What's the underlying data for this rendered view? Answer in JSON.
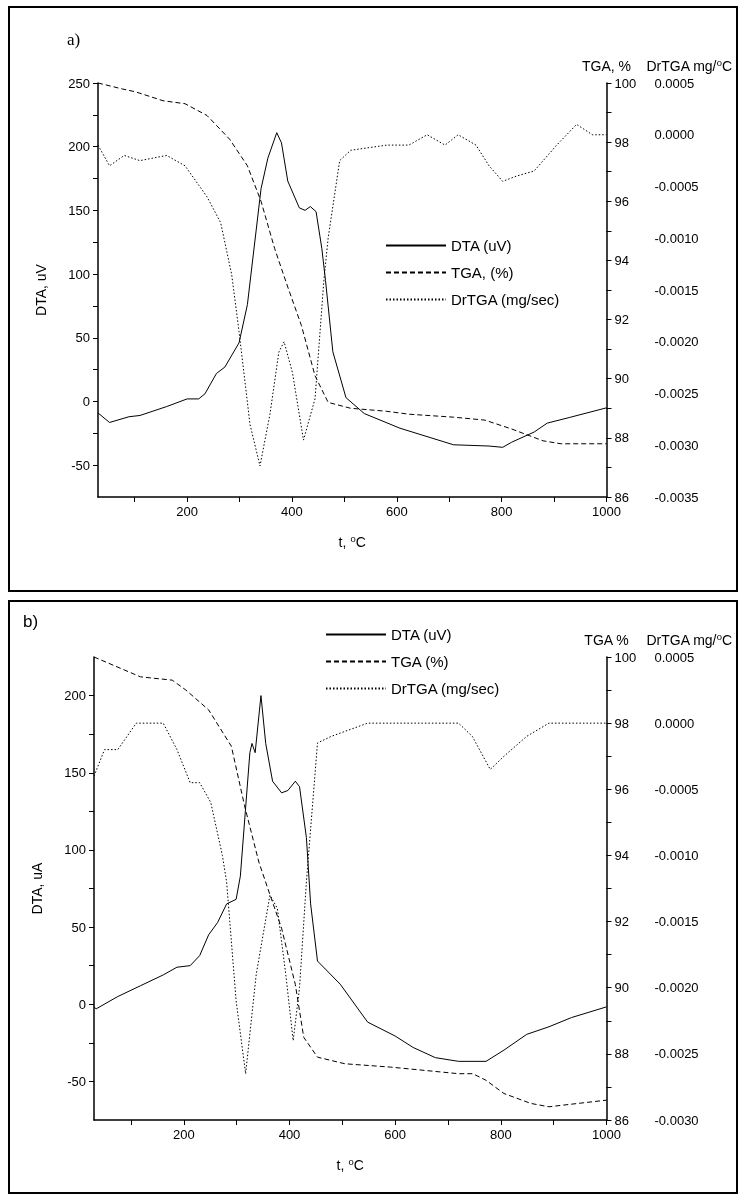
{
  "chart_data": [
    {
      "type": "line",
      "title": "a)",
      "xlabel": "t, ⁰C",
      "ylabel": "DTA, uV",
      "y2label": "TGA, %",
      "y3label": "DrTGA mg/⁰C",
      "legend": "right",
      "marker": "none",
      "xlim": [
        30,
        1000
      ],
      "xticks": [
        {
          "value": 100,
          "label": null
        },
        200,
        {
          "value": 300,
          "label": null
        },
        400,
        {
          "value": 500,
          "label": null
        },
        600,
        {
          "value": 700,
          "label": null
        },
        800,
        {
          "value": 900,
          "label": null
        },
        1000
      ],
      "ylim": [
        -75,
        250
      ],
      "yticks": [
        -50,
        {
          "value": -25,
          "label": null
        },
        0,
        {
          "value": 25,
          "label": null
        },
        50,
        {
          "value": 75,
          "label": null
        },
        100,
        {
          "value": 125,
          "label": null
        },
        150,
        {
          "value": 175,
          "label": null
        },
        200,
        {
          "value": 225,
          "label": null
        },
        250
      ],
      "y2lim": [
        86,
        100
      ],
      "y2ticks": [
        86,
        {
          "value": 87,
          "label": null
        },
        88,
        {
          "value": 89,
          "label": null
        },
        90,
        {
          "value": 91,
          "label": null
        },
        92,
        {
          "value": 93,
          "label": null
        },
        94,
        {
          "value": 95,
          "label": null
        },
        96,
        {
          "value": 97,
          "label": null
        },
        98,
        {
          "value": 99,
          "label": null
        },
        100
      ],
      "y3lim": [
        -0.0035,
        0.0005
      ],
      "y3ticks": [
        -0.0035,
        {
          "value": -0.003,
          "label": "-0.0030"
        },
        -0.0025,
        {
          "value": -0.002,
          "label": "-0.0020"
        },
        -0.0015,
        {
          "value": -0.001,
          "label": "-0.0010"
        },
        -0.0005,
        {
          "value": 0,
          "label": "0.0000"
        },
        0.0005
      ],
      "series": [
        {
          "name": "DTA (uV)",
          "color": "#000000",
          "line_style": "solid",
          "x": [
            30,
            52,
            89,
            110,
            161,
            200,
            222,
            234,
            256,
            272,
            299,
            315,
            341,
            354,
            371,
            380,
            392,
            414,
            425,
            435,
            446,
            457,
            464,
            478,
            503,
            538,
            606,
            665,
            708,
            776,
            802,
            819,
            862,
            887,
            930,
            1000
          ],
          "values": [
            -9,
            -16.5,
            -12,
            -11,
            -4,
            2,
            2,
            6,
            22,
            27,
            46,
            76,
            167,
            191,
            211,
            203,
            173,
            152,
            150,
            153,
            149,
            120,
            95,
            39,
            3,
            -9.5,
            -21,
            -28.5,
            -34,
            -35,
            -36,
            -32,
            -24,
            -17,
            -12.5,
            -5
          ]
        },
        {
          "name": "TGA, (%)",
          "color": "#000000",
          "line_style": "dashed",
          "axis": "y2",
          "x": [
            30,
            76,
            102,
            154,
            196,
            238,
            281,
            315,
            341,
            367,
            392,
            418,
            444,
            469,
            512,
            580,
            623,
            708,
            768,
            819,
            879,
            913,
            1000
          ],
          "values": [
            100,
            99.8,
            99.7,
            99.4,
            99.3,
            98.9,
            98.1,
            97.2,
            96.0,
            94.4,
            93.1,
            91.8,
            90.1,
            89.2,
            89.0,
            88.9,
            88.8,
            88.7,
            88.6,
            88.3,
            87.9,
            87.8,
            87.8
          ]
        },
        {
          "name": "DrTGA (mg/sec)",
          "color": "#000000",
          "line_style": "dotted",
          "axis": "y3",
          "x": [
            30,
            52,
            80,
            110,
            161,
            196,
            238,
            264,
            285,
            299,
            320,
            339,
            358,
            375,
            385,
            401,
            422,
            444,
            461,
            469,
            491,
            512,
            581,
            623,
            658,
            692,
            717,
            751,
            776,
            802,
            828,
            862,
            905,
            943,
            973,
            1000
          ],
          "values": [
            -0.0001,
            -0.0003,
            -0.0002,
            -0.00025,
            -0.0002,
            -0.0003,
            -0.0006,
            -0.00085,
            -0.00135,
            -0.0019,
            -0.0028,
            -0.0032,
            -0.0027,
            -0.0021,
            -0.002,
            -0.0023,
            -0.00295,
            -0.00255,
            -0.0014,
            -0.001,
            -0.00025,
            -0.00015,
            -0.0001,
            -0.0001,
            0,
            -0.0001,
            0,
            -0.0001,
            -0.0003,
            -0.00045,
            -0.0004,
            -0.00035,
            -0.0001,
            0.0001,
            0,
            0
          ]
        }
      ]
    },
    {
      "type": "line",
      "title": "b)",
      "xlabel": "t, ⁰C",
      "ylabel": "DTA, uA",
      "y2label": "TGA %",
      "y3label": "DrTGA mg/⁰C",
      "legend": "top",
      "marker": "none",
      "xlim": [
        30,
        1000
      ],
      "xticks": [
        {
          "value": 100,
          "label": null
        },
        200,
        {
          "value": 300,
          "label": null
        },
        400,
        {
          "value": 500,
          "label": null
        },
        600,
        {
          "value": 700,
          "label": null
        },
        800,
        {
          "value": 900,
          "label": null
        },
        1000
      ],
      "ylim": [
        -75,
        225
      ],
      "yticks": [
        -50,
        {
          "value": -25,
          "label": null
        },
        0,
        {
          "value": 25,
          "label": null
        },
        50,
        {
          "value": 75,
          "label": null
        },
        100,
        {
          "value": 125,
          "label": null
        },
        150,
        {
          "value": 175,
          "label": null
        },
        200
      ],
      "y2lim": [
        86,
        100
      ],
      "y2ticks": [
        86,
        {
          "value": 87,
          "label": null
        },
        88,
        {
          "value": 89,
          "label": null
        },
        90,
        {
          "value": 91,
          "label": null
        },
        92,
        {
          "value": 93,
          "label": null
        },
        94,
        {
          "value": 95,
          "label": null
        },
        96,
        {
          "value": 97,
          "label": null
        },
        98,
        {
          "value": 99,
          "label": null
        },
        100
      ],
      "y3lim": [
        -0.003,
        0.0005
      ],
      "y3ticks": [
        {
          "value": -0.003,
          "label": "-0.0030"
        },
        -0.0025,
        {
          "value": -0.002,
          "label": "-0.0020"
        },
        -0.0015,
        {
          "value": -0.001,
          "label": "-0.0010"
        },
        -0.0005,
        {
          "value": 0,
          "label": "0.0000"
        },
        0.0005
      ],
      "series": [
        {
          "name": "DTA (uV)",
          "color": "#000000",
          "line_style": "solid",
          "x": [
            30,
            34,
            75,
            118,
            161,
            187,
            212,
            230,
            247,
            264,
            281,
            299,
            307,
            325,
            329,
            335,
            346,
            355,
            368,
            385,
            397,
            411,
            419,
            432,
            440,
            453,
            496,
            548,
            600,
            634,
            676,
            720,
            772,
            806,
            849,
            891,
            934,
            1000
          ],
          "values": [
            -1.7,
            -3,
            5,
            12,
            19,
            24,
            25,
            31.5,
            45,
            53,
            65,
            68,
            83,
            163,
            169,
            163,
            200,
            169,
            144.5,
            137,
            138.5,
            144.5,
            141,
            108,
            65,
            28,
            13,
            -11.6,
            -20.6,
            -28,
            -34.6,
            -37,
            -37,
            -29.7,
            -19.5,
            -14.6,
            -8.6,
            -1.7
          ]
        },
        {
          "name": "TGA (%)",
          "color": "#000000",
          "line_style": "dashed",
          "axis": "y2",
          "x": [
            30,
            118,
            178,
            204,
            247,
            290,
            315,
            342,
            359,
            385,
            411,
            427,
            453,
            505,
            591,
            720,
            747,
            772,
            806,
            857,
            891,
            1000
          ],
          "values": [
            100,
            99.4,
            99.3,
            99.0,
            98.4,
            97.3,
            95.5,
            93.8,
            93.0,
            91.8,
            90.1,
            88.5,
            87.9,
            87.7,
            87.6,
            87.4,
            87.4,
            87.2,
            86.8,
            86.5,
            86.4,
            86.6
          ]
        },
        {
          "name": "DrTGA (mg/sec)",
          "color": "#000000",
          "line_style": "dotted",
          "axis": "y3",
          "x": [
            30,
            50,
            75,
            110,
            135,
            161,
            187,
            212,
            230,
            251,
            273,
            281,
            299,
            317,
            337,
            363,
            377,
            393,
            407,
            419,
            432,
            453,
            479,
            548,
            720,
            746,
            780,
            806,
            849,
            891,
            934,
            1000
          ],
          "values": [
            -0.0004,
            -0.0002,
            -0.0002,
            0,
            0,
            0,
            -0.0002,
            -0.00045,
            -0.00045,
            -0.0006,
            -0.001,
            -0.0012,
            -0.0021,
            -0.00265,
            -0.0019,
            -0.0013,
            -0.0014,
            -0.0019,
            -0.0024,
            -0.002,
            -0.0012,
            -0.00015,
            -0.0001,
            0,
            0,
            -0.0001,
            -0.00035,
            -0.00025,
            -0.0001,
            0,
            0,
            0
          ]
        }
      ]
    }
  ]
}
